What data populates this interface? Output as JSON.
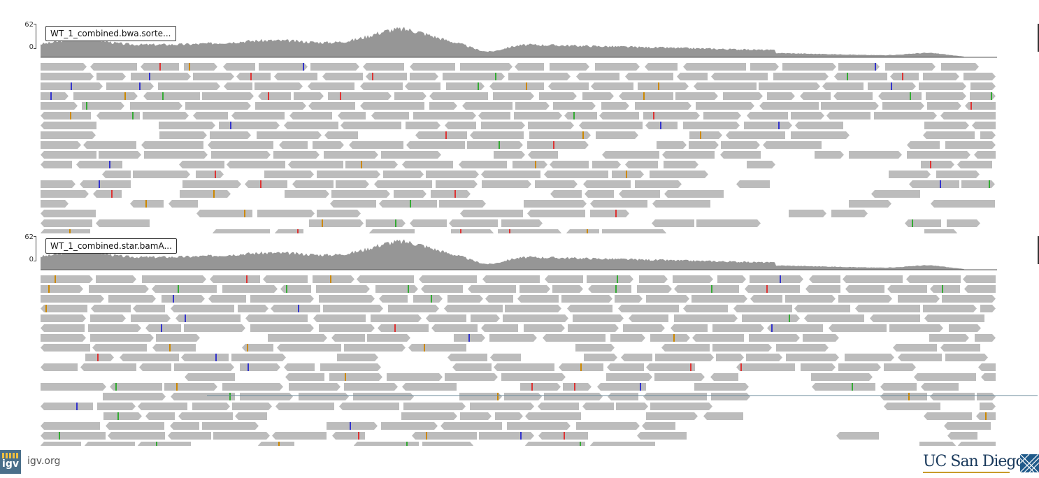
{
  "tracks": [
    {
      "name": "WT_1_combined.bwa.sorte...",
      "scale_max": "62",
      "scale_min": "0",
      "seed": 7
    },
    {
      "name": "WT_1_combined.star.bamA...",
      "scale_max": "62",
      "scale_min": "0",
      "seed": 11
    }
  ],
  "footer": {
    "igv_logo_text": "igv",
    "igv_link": "igv.org",
    "ucsd_text": "UC San Diego"
  },
  "colors": {
    "read": "#bcbcbc",
    "coverage": "#969696",
    "mismatch": [
      "#d33",
      "#33c",
      "#3a3",
      "#c80"
    ]
  }
}
